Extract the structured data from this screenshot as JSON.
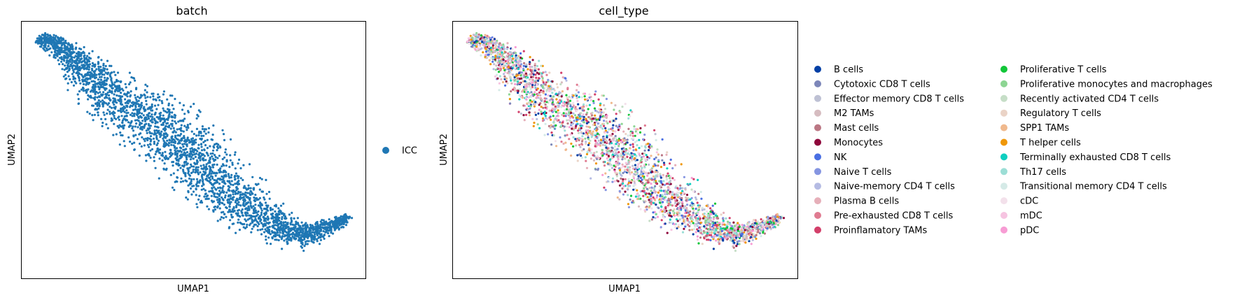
{
  "chart_data": [
    {
      "type": "scatter",
      "title": "batch",
      "xlabel": "UMAP1",
      "ylabel": "UMAP2",
      "x_ticks": "none",
      "y_ticks": "none",
      "legend_placement": "right",
      "series": [
        {
          "name": "ICC",
          "color": "#1f77b4"
        }
      ]
    },
    {
      "type": "scatter",
      "title": "cell_type",
      "xlabel": "UMAP1",
      "ylabel": "UMAP2",
      "x_ticks": "none",
      "y_ticks": "none",
      "legend_placement": "right",
      "series": [
        {
          "name": "B cells",
          "color": "#023fa5"
        },
        {
          "name": "Cytotoxic CD8 T cells",
          "color": "#7d87b9"
        },
        {
          "name": "Effector memory CD8 T cells",
          "color": "#bec1d4"
        },
        {
          "name": "M2 TAMs",
          "color": "#d6bcc0"
        },
        {
          "name": "Mast cells",
          "color": "#bb7784"
        },
        {
          "name": "Monocytes",
          "color": "#8e063b"
        },
        {
          "name": "NK",
          "color": "#4a6fe3"
        },
        {
          "name": "Naive T cells",
          "color": "#8595e1"
        },
        {
          "name": "Naive-memory CD4 T cells",
          "color": "#b5bbe3"
        },
        {
          "name": "Plasma B cells",
          "color": "#e6afb9"
        },
        {
          "name": "Pre-exhausted CD8 T cells",
          "color": "#e07b91"
        },
        {
          "name": "Proinflamatory TAMs",
          "color": "#d33f6a"
        },
        {
          "name": "Proliferative T cells",
          "color": "#11c638"
        },
        {
          "name": "Proliferative monocytes and macrophages",
          "color": "#8dd593"
        },
        {
          "name": "Recently activated CD4 T cells",
          "color": "#c6dec7"
        },
        {
          "name": "Regulatory T cells",
          "color": "#ead3c6"
        },
        {
          "name": "SPP1 TAMs",
          "color": "#f0b98d"
        },
        {
          "name": "T helper cells",
          "color": "#ef9708"
        },
        {
          "name": "Terminally exhausted CD8 T cells",
          "color": "#0fcfc0"
        },
        {
          "name": "Th17 cells",
          "color": "#9cded6"
        },
        {
          "name": "Transitional memory CD4 T cells",
          "color": "#d5eae7"
        },
        {
          "name": "cDC",
          "color": "#f3e1eb"
        },
        {
          "name": "mDC",
          "color": "#f6c4e1"
        },
        {
          "name": "pDC",
          "color": "#f79cd4"
        }
      ]
    }
  ]
}
